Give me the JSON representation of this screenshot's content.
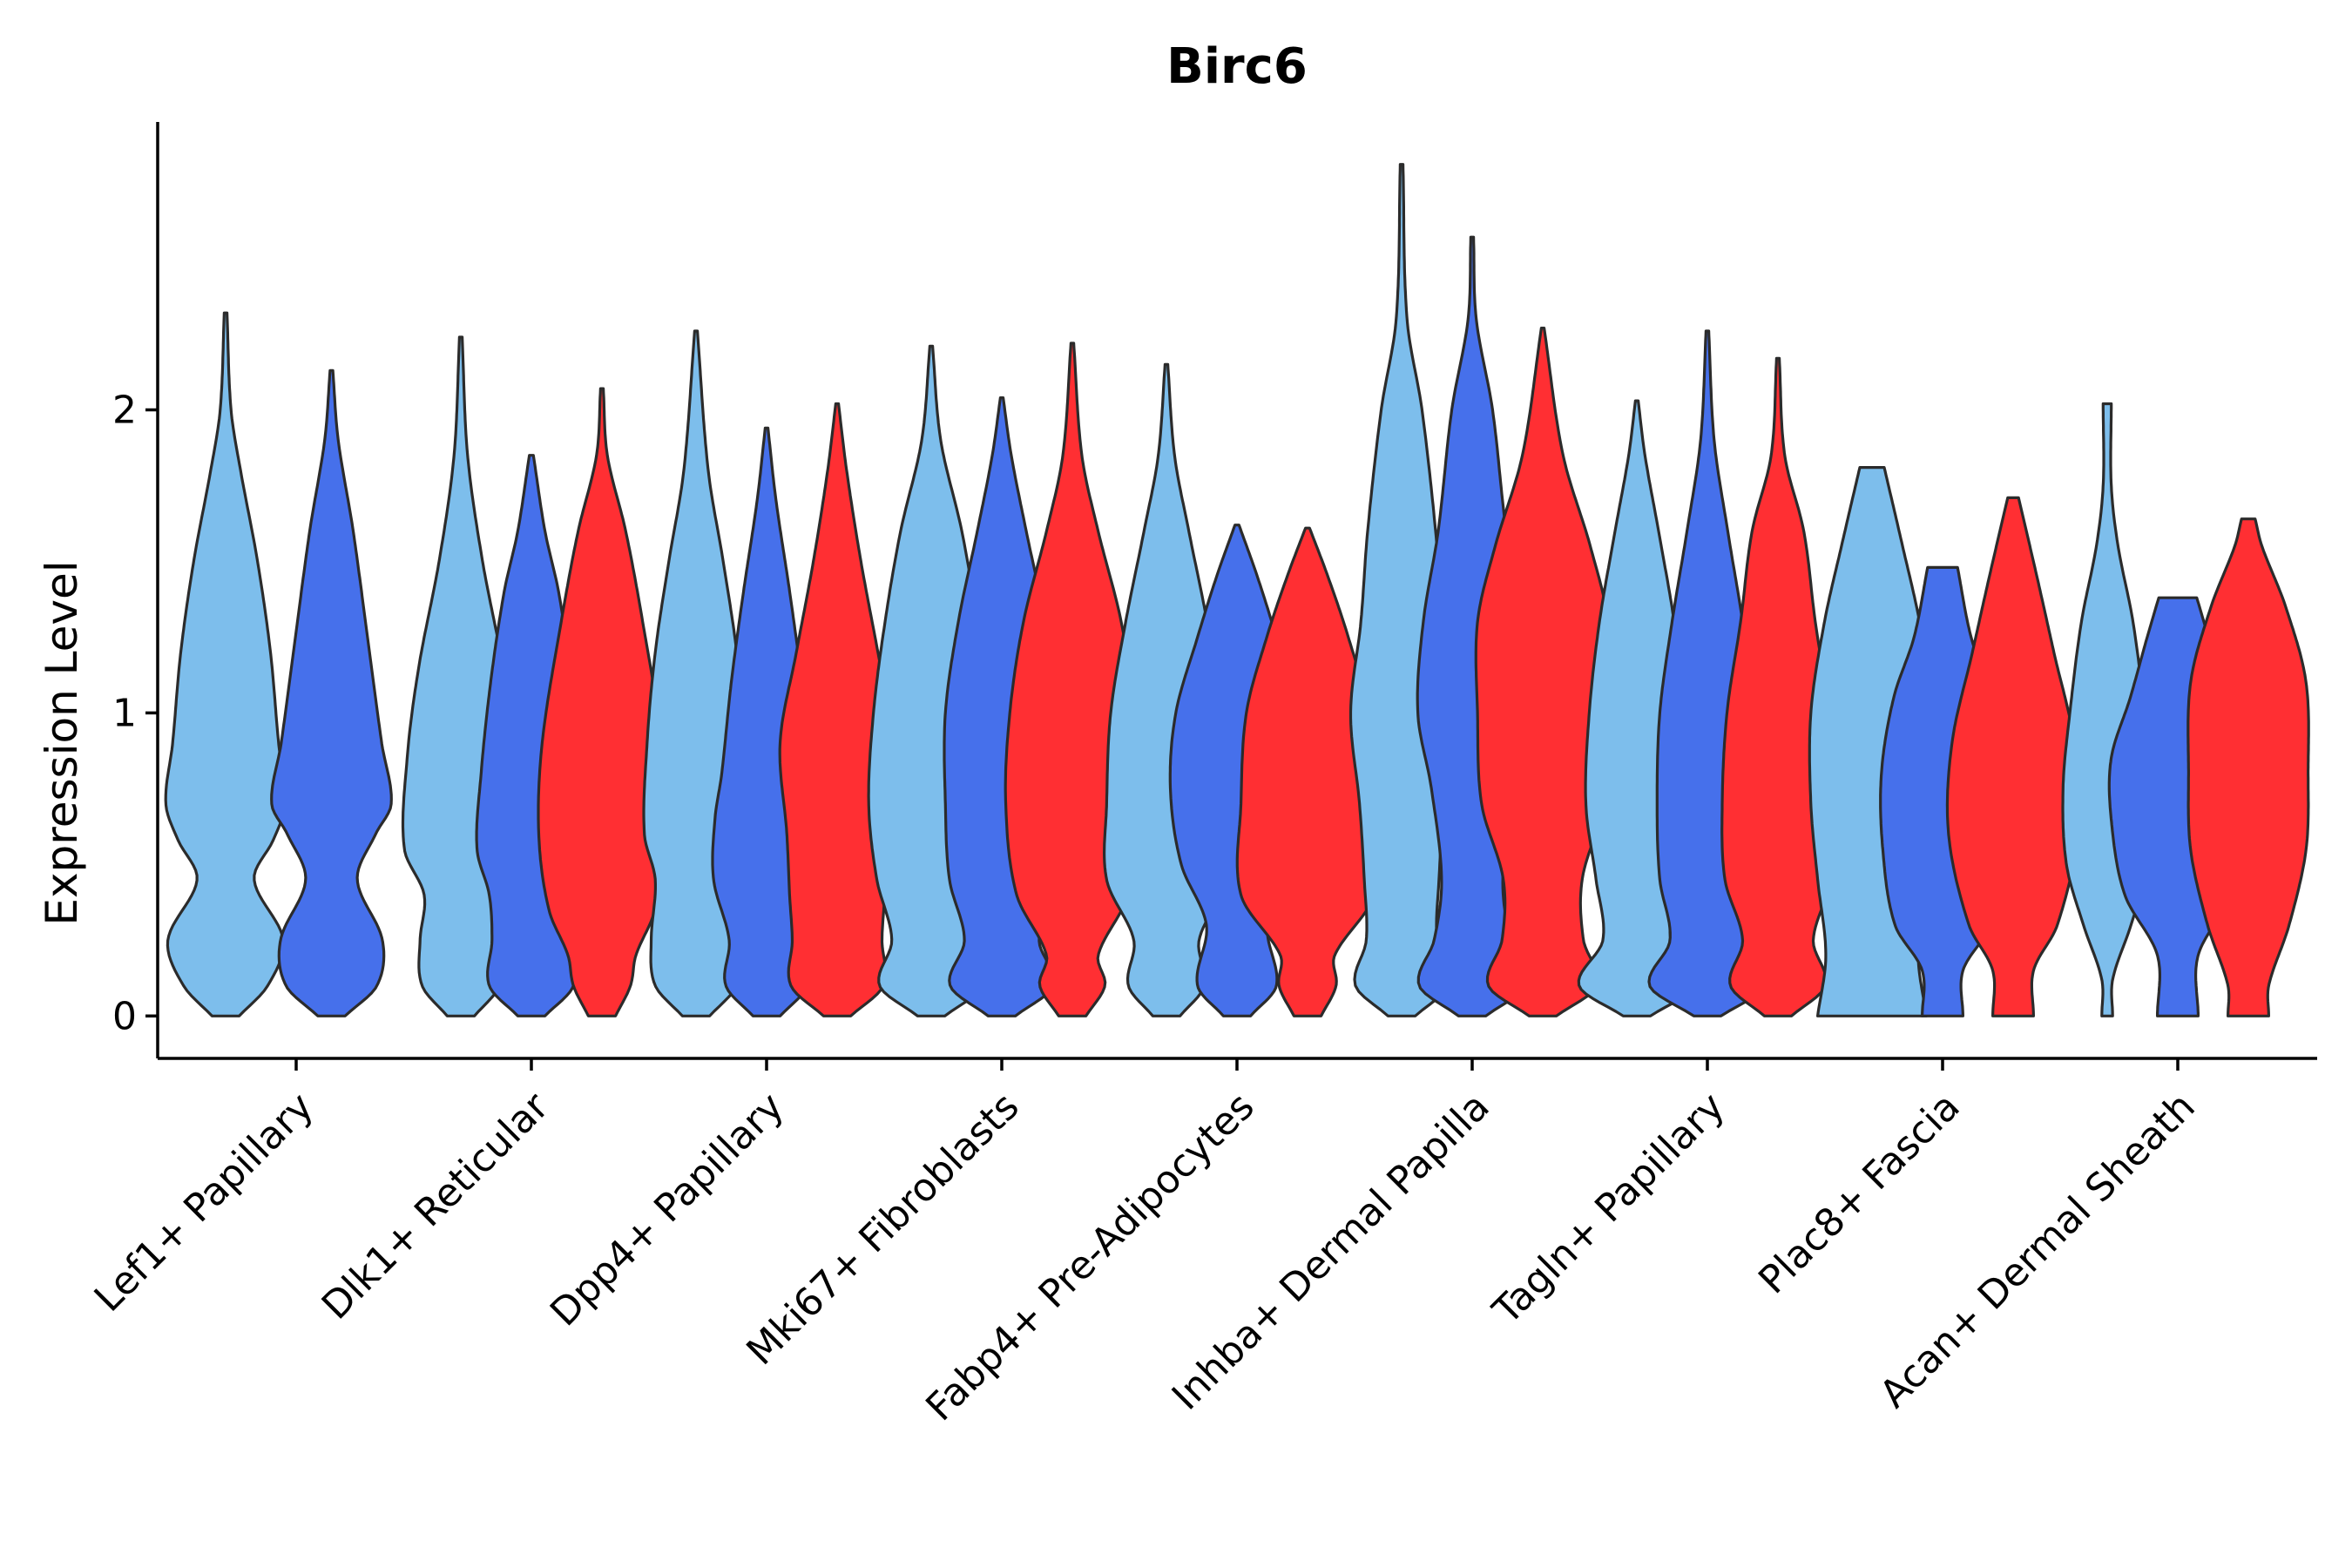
{
  "chart_data": {
    "type": "violin",
    "title": "Birc6",
    "xlabel": "",
    "ylabel": "Expression Level",
    "ylim": [
      -0.14,
      2.95
    ],
    "yticks": [
      0,
      1,
      2
    ],
    "grid": false,
    "legend": "none",
    "group_colors": [
      "#7DBEEC",
      "#4670EB",
      "#FF2F33"
    ],
    "categories": [
      "Lef1+ Papillary",
      "Dlk1+ Reticular",
      "Dpp4+ Papillary",
      "Mki67+ Fibroblasts",
      "Fabp4+ Pre-Adipocytes",
      "Inhba+ Dermal Papilla",
      "Tagln+ Papillary",
      "Plac8+ Fascia",
      "Acan+ Dermal Sheath"
    ],
    "violins": [
      {
        "category": 0,
        "group": 0,
        "offset": -0.3,
        "max": 2.32,
        "knots": [
          [
            0,
            0.2
          ],
          [
            0.1,
            0.62
          ],
          [
            0.25,
            0.85
          ],
          [
            0.45,
            0.42
          ],
          [
            0.58,
            0.7
          ],
          [
            0.7,
            0.88
          ],
          [
            0.9,
            0.78
          ],
          [
            1.2,
            0.66
          ],
          [
            1.5,
            0.47
          ],
          [
            1.8,
            0.22
          ],
          [
            2.0,
            0.08
          ],
          [
            2.32,
            0.02
          ]
        ]
      },
      {
        "category": 0,
        "group": 1,
        "offset": 0.15,
        "max": 2.13,
        "knots": [
          [
            0,
            0.2
          ],
          [
            0.1,
            0.67
          ],
          [
            0.25,
            0.75
          ],
          [
            0.45,
            0.38
          ],
          [
            0.6,
            0.65
          ],
          [
            0.7,
            0.88
          ],
          [
            0.9,
            0.74
          ],
          [
            1.2,
            0.56
          ],
          [
            1.6,
            0.32
          ],
          [
            1.9,
            0.1
          ],
          [
            2.13,
            0.02
          ]
        ]
      },
      {
        "category": 1,
        "group": 0,
        "offset": -0.3,
        "max": 2.24,
        "knots": [
          [
            0,
            0.2
          ],
          [
            0.1,
            0.57
          ],
          [
            0.25,
            0.6
          ],
          [
            0.4,
            0.54
          ],
          [
            0.55,
            0.83
          ],
          [
            0.85,
            0.79
          ],
          [
            1.15,
            0.62
          ],
          [
            1.5,
            0.32
          ],
          [
            1.85,
            0.1
          ],
          [
            2.24,
            0.02
          ]
        ]
      },
      {
        "category": 1,
        "group": 1,
        "offset": 0.0,
        "max": 1.85,
        "knots": [
          [
            0,
            0.2
          ],
          [
            0.1,
            0.62
          ],
          [
            0.25,
            0.58
          ],
          [
            0.4,
            0.62
          ],
          [
            0.55,
            0.8
          ],
          [
            0.8,
            0.74
          ],
          [
            1.1,
            0.6
          ],
          [
            1.4,
            0.4
          ],
          [
            1.6,
            0.2
          ],
          [
            1.85,
            0.03
          ]
        ]
      },
      {
        "category": 1,
        "group": 2,
        "offset": 0.3,
        "max": 2.07,
        "knots": [
          [
            0,
            0.2
          ],
          [
            0.1,
            0.42
          ],
          [
            0.2,
            0.5
          ],
          [
            0.35,
            0.78
          ],
          [
            0.6,
            0.93
          ],
          [
            0.9,
            0.88
          ],
          [
            1.3,
            0.6
          ],
          [
            1.6,
            0.35
          ],
          [
            1.85,
            0.08
          ],
          [
            2.07,
            0.02
          ]
        ]
      },
      {
        "category": 2,
        "group": 0,
        "offset": -0.3,
        "max": 2.26,
        "knots": [
          [
            0,
            0.2
          ],
          [
            0.1,
            0.6
          ],
          [
            0.25,
            0.66
          ],
          [
            0.45,
            0.6
          ],
          [
            0.6,
            0.76
          ],
          [
            0.9,
            0.72
          ],
          [
            1.2,
            0.6
          ],
          [
            1.5,
            0.4
          ],
          [
            1.8,
            0.18
          ],
          [
            2.26,
            0.02
          ]
        ]
      },
      {
        "category": 2,
        "group": 1,
        "offset": 0.0,
        "max": 1.94,
        "knots": [
          [
            0,
            0.2
          ],
          [
            0.1,
            0.6
          ],
          [
            0.25,
            0.55
          ],
          [
            0.45,
            0.78
          ],
          [
            0.65,
            0.76
          ],
          [
            0.8,
            0.66
          ],
          [
            1.1,
            0.52
          ],
          [
            1.4,
            0.34
          ],
          [
            1.7,
            0.14
          ],
          [
            1.94,
            0.02
          ]
        ]
      },
      {
        "category": 2,
        "group": 2,
        "offset": 0.3,
        "max": 2.02,
        "knots": [
          [
            0,
            0.2
          ],
          [
            0.1,
            0.68
          ],
          [
            0.25,
            0.66
          ],
          [
            0.4,
            0.7
          ],
          [
            0.6,
            0.74
          ],
          [
            0.9,
            0.84
          ],
          [
            1.2,
            0.6
          ],
          [
            1.5,
            0.35
          ],
          [
            1.8,
            0.14
          ],
          [
            2.02,
            0.02
          ]
        ]
      },
      {
        "category": 3,
        "group": 0,
        "offset": -0.3,
        "max": 2.21,
        "knots": [
          [
            0,
            0.2
          ],
          [
            0.1,
            0.76
          ],
          [
            0.25,
            0.58
          ],
          [
            0.45,
            0.8
          ],
          [
            0.7,
            0.92
          ],
          [
            1.0,
            0.85
          ],
          [
            1.3,
            0.68
          ],
          [
            1.6,
            0.45
          ],
          [
            1.9,
            0.14
          ],
          [
            2.21,
            0.02
          ]
        ]
      },
      {
        "category": 3,
        "group": 1,
        "offset": 0.0,
        "max": 2.04,
        "knots": [
          [
            0,
            0.2
          ],
          [
            0.1,
            0.76
          ],
          [
            0.25,
            0.55
          ],
          [
            0.45,
            0.77
          ],
          [
            0.7,
            0.83
          ],
          [
            1.0,
            0.83
          ],
          [
            1.3,
            0.64
          ],
          [
            1.6,
            0.36
          ],
          [
            1.85,
            0.14
          ],
          [
            2.04,
            0.02
          ]
        ]
      },
      {
        "category": 3,
        "group": 2,
        "offset": 0.3,
        "max": 2.22,
        "knots": [
          [
            0,
            0.2
          ],
          [
            0.1,
            0.48
          ],
          [
            0.2,
            0.38
          ],
          [
            0.4,
            0.82
          ],
          [
            0.7,
            0.98
          ],
          [
            1.0,
            0.92
          ],
          [
            1.3,
            0.72
          ],
          [
            1.6,
            0.38
          ],
          [
            1.85,
            0.14
          ],
          [
            2.22,
            0.02
          ]
        ]
      },
      {
        "category": 4,
        "group": 0,
        "offset": -0.3,
        "max": 2.15,
        "knots": [
          [
            0,
            0.2
          ],
          [
            0.1,
            0.56
          ],
          [
            0.25,
            0.48
          ],
          [
            0.45,
            0.88
          ],
          [
            0.7,
            0.88
          ],
          [
            1.0,
            0.82
          ],
          [
            1.3,
            0.6
          ],
          [
            1.6,
            0.33
          ],
          [
            1.85,
            0.12
          ],
          [
            2.15,
            0.02
          ]
        ]
      },
      {
        "category": 4,
        "group": 1,
        "offset": 0.0,
        "max": 1.62,
        "knots": [
          [
            0,
            0.2
          ],
          [
            0.1,
            0.58
          ],
          [
            0.3,
            0.45
          ],
          [
            0.5,
            0.82
          ],
          [
            0.75,
            0.98
          ],
          [
            1.0,
            0.9
          ],
          [
            1.25,
            0.58
          ],
          [
            1.45,
            0.3
          ],
          [
            1.62,
            0.03
          ]
        ]
      },
      {
        "category": 4,
        "group": 2,
        "offset": 0.3,
        "max": 1.61,
        "knots": [
          [
            0,
            0.2
          ],
          [
            0.1,
            0.42
          ],
          [
            0.2,
            0.4
          ],
          [
            0.4,
            0.98
          ],
          [
            0.7,
            0.98
          ],
          [
            1.0,
            0.9
          ],
          [
            1.25,
            0.6
          ],
          [
            1.45,
            0.3
          ],
          [
            1.61,
            0.03
          ]
        ]
      },
      {
        "category": 5,
        "group": 0,
        "offset": -0.3,
        "max": 2.81,
        "knots": [
          [
            0,
            0.2
          ],
          [
            0.1,
            0.68
          ],
          [
            0.25,
            0.52
          ],
          [
            0.45,
            0.55
          ],
          [
            0.7,
            0.62
          ],
          [
            1.0,
            0.75
          ],
          [
            1.3,
            0.6
          ],
          [
            1.6,
            0.5
          ],
          [
            2.0,
            0.3
          ],
          [
            2.3,
            0.08
          ],
          [
            2.81,
            0.02
          ]
        ]
      },
      {
        "category": 5,
        "group": 1,
        "offset": 0.0,
        "max": 2.57,
        "knots": [
          [
            0,
            0.2
          ],
          [
            0.1,
            0.78
          ],
          [
            0.25,
            0.56
          ],
          [
            0.45,
            0.45
          ],
          [
            0.75,
            0.6
          ],
          [
            1.0,
            0.8
          ],
          [
            1.3,
            0.72
          ],
          [
            1.6,
            0.5
          ],
          [
            2.0,
            0.3
          ],
          [
            2.3,
            0.06
          ],
          [
            2.57,
            0.02
          ]
        ]
      },
      {
        "category": 5,
        "group": 2,
        "offset": 0.3,
        "max": 2.27,
        "knots": [
          [
            0,
            0.2
          ],
          [
            0.1,
            0.8
          ],
          [
            0.25,
            0.6
          ],
          [
            0.45,
            0.58
          ],
          [
            0.7,
            0.9
          ],
          [
            1.0,
            0.96
          ],
          [
            1.3,
            0.96
          ],
          [
            1.55,
            0.7
          ],
          [
            1.85,
            0.3
          ],
          [
            2.27,
            0.02
          ]
        ]
      },
      {
        "category": 6,
        "group": 0,
        "offset": -0.3,
        "max": 2.03,
        "knots": [
          [
            0,
            0.2
          ],
          [
            0.1,
            0.85
          ],
          [
            0.25,
            0.5
          ],
          [
            0.45,
            0.6
          ],
          [
            0.7,
            0.75
          ],
          [
            1.0,
            0.7
          ],
          [
            1.3,
            0.55
          ],
          [
            1.6,
            0.32
          ],
          [
            1.85,
            0.12
          ],
          [
            2.03,
            0.02
          ]
        ]
      },
      {
        "category": 6,
        "group": 1,
        "offset": 0.0,
        "max": 2.26,
        "knots": [
          [
            0,
            0.2
          ],
          [
            0.1,
            0.85
          ],
          [
            0.25,
            0.55
          ],
          [
            0.45,
            0.7
          ],
          [
            0.7,
            0.74
          ],
          [
            1.0,
            0.7
          ],
          [
            1.3,
            0.52
          ],
          [
            1.6,
            0.3
          ],
          [
            1.9,
            0.1
          ],
          [
            2.26,
            0.02
          ]
        ]
      },
      {
        "category": 6,
        "group": 2,
        "offset": 0.3,
        "max": 2.17,
        "knots": [
          [
            0,
            0.2
          ],
          [
            0.1,
            0.7
          ],
          [
            0.25,
            0.52
          ],
          [
            0.45,
            0.78
          ],
          [
            0.7,
            0.82
          ],
          [
            1.0,
            0.75
          ],
          [
            1.3,
            0.55
          ],
          [
            1.6,
            0.38
          ],
          [
            1.85,
            0.1
          ],
          [
            2.17,
            0.02
          ]
        ]
      },
      {
        "category": 7,
        "group": 0,
        "offset": -0.3,
        "max": 1.81,
        "knots": [
          [
            0,
            0.8
          ],
          [
            0.2,
            0.68
          ],
          [
            0.45,
            0.8
          ],
          [
            0.7,
            0.9
          ],
          [
            1.0,
            0.9
          ],
          [
            1.3,
            0.7
          ],
          [
            1.55,
            0.45
          ],
          [
            1.81,
            0.18
          ]
        ]
      },
      {
        "category": 7,
        "group": 1,
        "offset": 0.0,
        "max": 1.48,
        "knots": [
          [
            0,
            0.3
          ],
          [
            0.15,
            0.3
          ],
          [
            0.3,
            0.7
          ],
          [
            0.55,
            0.88
          ],
          [
            0.8,
            0.9
          ],
          [
            1.05,
            0.72
          ],
          [
            1.25,
            0.42
          ],
          [
            1.48,
            0.22
          ]
        ]
      },
      {
        "category": 7,
        "group": 2,
        "offset": 0.3,
        "max": 1.71,
        "knots": [
          [
            0,
            0.3
          ],
          [
            0.15,
            0.3
          ],
          [
            0.3,
            0.65
          ],
          [
            0.6,
            0.95
          ],
          [
            0.9,
            0.9
          ],
          [
            1.2,
            0.6
          ],
          [
            1.45,
            0.35
          ],
          [
            1.71,
            0.08
          ]
        ]
      },
      {
        "category": 8,
        "group": 0,
        "offset": -0.3,
        "max": 2.02,
        "knots": [
          [
            0,
            0.08
          ],
          [
            0.12,
            0.08
          ],
          [
            0.3,
            0.35
          ],
          [
            0.5,
            0.6
          ],
          [
            0.75,
            0.65
          ],
          [
            1.0,
            0.55
          ],
          [
            1.3,
            0.38
          ],
          [
            1.55,
            0.16
          ],
          [
            1.75,
            0.06
          ],
          [
            2.02,
            0.06
          ]
        ]
      },
      {
        "category": 8,
        "group": 1,
        "offset": 0.0,
        "max": 1.38,
        "knots": [
          [
            0,
            0.3
          ],
          [
            0.2,
            0.3
          ],
          [
            0.4,
            0.78
          ],
          [
            0.65,
            0.98
          ],
          [
            0.85,
            0.98
          ],
          [
            1.05,
            0.7
          ],
          [
            1.25,
            0.45
          ],
          [
            1.38,
            0.28
          ]
        ]
      },
      {
        "category": 8,
        "group": 2,
        "offset": 0.3,
        "max": 1.64,
        "knots": [
          [
            0,
            0.3
          ],
          [
            0.1,
            0.3
          ],
          [
            0.3,
            0.6
          ],
          [
            0.55,
            0.85
          ],
          [
            0.8,
            0.88
          ],
          [
            1.1,
            0.85
          ],
          [
            1.35,
            0.55
          ],
          [
            1.55,
            0.2
          ],
          [
            1.64,
            0.1
          ]
        ]
      }
    ]
  }
}
